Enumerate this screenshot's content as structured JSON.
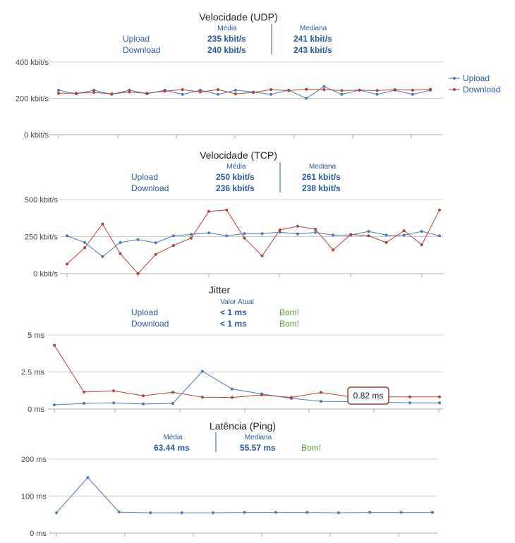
{
  "colors": {
    "upload": "#4a7ab5",
    "download": "#b5403a",
    "grid": "#cccccc",
    "axis": "#aaaaaa",
    "summary": "#2b5aa0",
    "good": "#5aa02b",
    "tooltip_border": "#a33a35"
  },
  "legend": {
    "position": "right",
    "upload": "Upload",
    "download": "Download"
  },
  "chart_data": [
    {
      "type": "line",
      "title": "Velocidade (UDP)",
      "summary": {
        "col1_header": "Média",
        "col2_header": "Mediana",
        "rows": [
          {
            "label": "Upload",
            "col1": "235 kbit/s",
            "col2": "241 kbit/s"
          },
          {
            "label": "Download",
            "col1": "240 kbit/s",
            "col2": "243 kbit/s"
          }
        ]
      },
      "ylim": [
        0,
        400
      ],
      "yticks": [
        "0 kbit/s",
        "200 kbit/s",
        "400 kbit/s"
      ],
      "ytick_values": [
        0,
        200,
        400
      ],
      "grid": true,
      "series": [
        {
          "name": "Upload",
          "values": [
            245,
            225,
            245,
            222,
            245,
            225,
            245,
            222,
            245,
            222,
            245,
            235,
            222,
            245,
            200,
            265,
            222,
            245,
            222,
            245,
            222,
            245
          ]
        },
        {
          "name": "Download",
          "values": [
            228,
            228,
            233,
            225,
            235,
            228,
            240,
            248,
            235,
            248,
            225,
            233,
            248,
            243,
            250,
            248,
            243,
            245,
            243,
            248,
            245,
            250
          ]
        }
      ]
    },
    {
      "type": "line",
      "title": "Velocidade (TCP)",
      "summary": {
        "col1_header": "Média",
        "col2_header": "Mediana",
        "rows": [
          {
            "label": "Upload",
            "col1": "250 kbit/s",
            "col2": "261 kbit/s"
          },
          {
            "label": "Download",
            "col1": "236 kbit/s",
            "col2": "238 kbit/s"
          }
        ]
      },
      "ylim": [
        0,
        500
      ],
      "yticks": [
        "0 kbit/s",
        "250 kbit/s",
        "500 kbit/s"
      ],
      "ytick_values": [
        0,
        250,
        500
      ],
      "grid": true,
      "series": [
        {
          "name": "Upload",
          "values": [
            255,
            210,
            115,
            210,
            230,
            208,
            255,
            265,
            275,
            255,
            270,
            270,
            280,
            268,
            278,
            260,
            260,
            285,
            260,
            260,
            285,
            255
          ]
        },
        {
          "name": "Download",
          "values": [
            65,
            175,
            335,
            135,
            0,
            130,
            190,
            240,
            420,
            430,
            240,
            120,
            295,
            320,
            300,
            160,
            265,
            255,
            210,
            290,
            195,
            430
          ]
        }
      ]
    },
    {
      "type": "line",
      "title": "Jitter",
      "summary": {
        "col1_header": "Valor Atual",
        "rows": [
          {
            "label": "Upload",
            "col1": "< 1 ms",
            "quality": "Bom!"
          },
          {
            "label": "Download",
            "col1": "< 1 ms",
            "quality": "Bom!"
          }
        ]
      },
      "ylim": [
        0,
        5
      ],
      "yticks": [
        "0 ms",
        "2.5 ms",
        "5 ms"
      ],
      "ytick_values": [
        0,
        2.5,
        5
      ],
      "grid": true,
      "tooltip": {
        "text": "0.82 ms",
        "series": 1,
        "index": 10
      },
      "series": [
        {
          "name": "Upload",
          "values": [
            0.28,
            0.38,
            0.41,
            0.34,
            0.38,
            2.55,
            1.35,
            1.02,
            0.72,
            0.52,
            0.5,
            0.46,
            0.42,
            0.42
          ]
        },
        {
          "name": "Download",
          "values": [
            4.3,
            1.15,
            1.23,
            0.9,
            1.13,
            0.8,
            0.78,
            0.95,
            0.78,
            1.12,
            0.82,
            0.82,
            0.82,
            0.82
          ]
        }
      ]
    },
    {
      "type": "line",
      "title": "Latência (Ping)",
      "summary": {
        "col1_header": "Média",
        "col2_header": "Mediana",
        "values": {
          "col1": "63.44 ms",
          "col2": "55.57 ms",
          "quality": "Bom!"
        }
      },
      "ylim": [
        0,
        200
      ],
      "yticks": [
        "0 ms",
        "100 ms",
        "200 ms"
      ],
      "ytick_values": [
        0,
        100,
        200
      ],
      "grid": true,
      "series": [
        {
          "name": "Ping",
          "values": [
            55,
            150,
            57,
            55,
            55,
            55,
            56,
            56,
            56,
            55,
            56,
            56,
            56
          ]
        }
      ]
    }
  ]
}
